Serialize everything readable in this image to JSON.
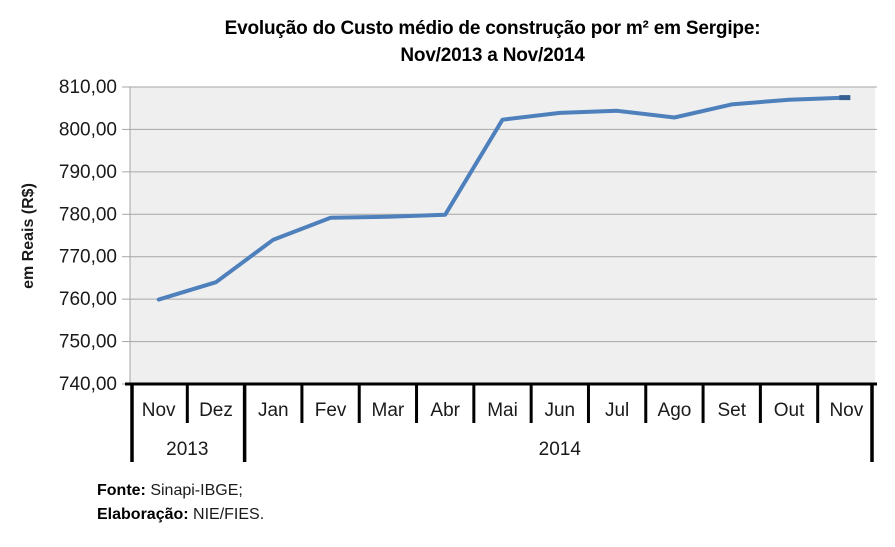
{
  "chart_data": {
    "type": "line",
    "title_lines": [
      "Evolução do Custo médio de construção por m² em Sergipe:",
      "Nov/2013 a Nov/2014"
    ],
    "ylabel": "em Reais (R$)",
    "ylim": [
      740,
      810
    ],
    "ytick_step": 10,
    "ytick_labels": [
      "740,00",
      "750,00",
      "760,00",
      "770,00",
      "780,00",
      "790,00",
      "800,00",
      "810,00"
    ],
    "categories": [
      "Nov",
      "Dez",
      "Jan",
      "Fev",
      "Mar",
      "Abr",
      "Mai",
      "Jun",
      "Jul",
      "Ago",
      "Set",
      "Out",
      "Nov"
    ],
    "year_groups": [
      {
        "label": "2013",
        "start": 0,
        "end": 2
      },
      {
        "label": "2014",
        "start": 2,
        "end": 13
      }
    ],
    "values": [
      759.9,
      764.0,
      774.0,
      779.2,
      779.4,
      779.9,
      802.3,
      803.9,
      804.4,
      802.8,
      805.9,
      807.0,
      807.5
    ],
    "grid": true,
    "legend": "none",
    "colors": {
      "line": "#4E80BC",
      "line_end_marker": "#365F91",
      "plot_background": "#F0EFF0",
      "gridline": "#A6A6A6",
      "axis": "#000000",
      "label_text": "#1A1A1A"
    }
  },
  "footer": {
    "fonte_label": "Fonte:",
    "fonte_text": " Sinapi-IBGE;",
    "elaboracao_label": "Elaboração:",
    "elaboracao_text": " NIE/FIES."
  }
}
